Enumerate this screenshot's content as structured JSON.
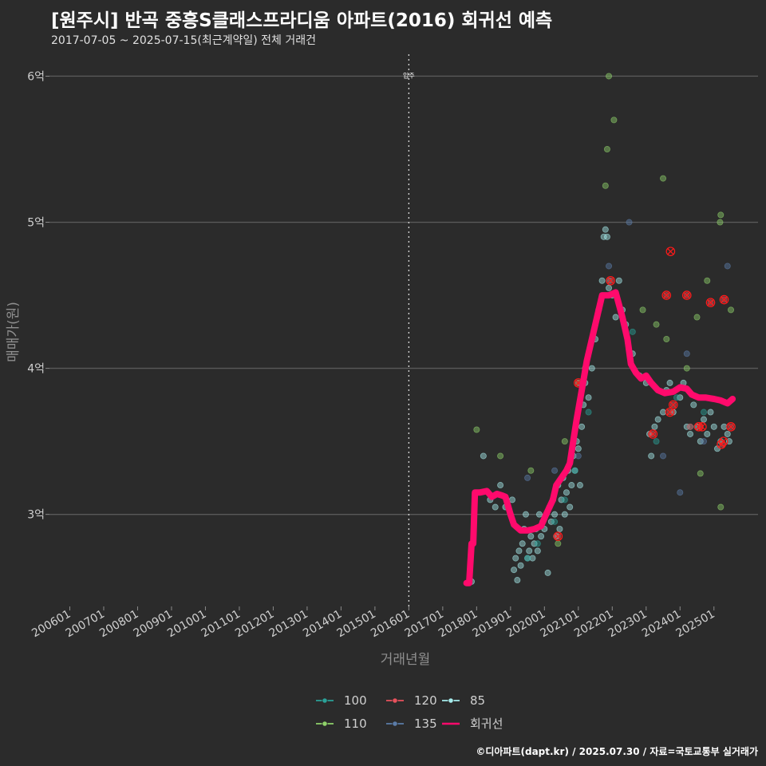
{
  "header": {
    "title": "[원주시] 반곡 중흥S클래스프라디움 아파트(2016) 회귀선 예측",
    "subtitle": "2017-07-05 ~ 2025-07-15(최근계약일) 전체 거래건"
  },
  "credit": "©디아파트(dapt.kr) / 2025.07.30 / 자료=국토교통부 실거래가",
  "chart_data": {
    "type": "scatter",
    "xlabel": "거래년월",
    "ylabel": "매매가(원)",
    "x_ticks": [
      "200601",
      "200701",
      "200801",
      "200901",
      "201001",
      "201101",
      "201201",
      "201301",
      "201401",
      "201501",
      "201601",
      "201701",
      "201801",
      "201901",
      "202001",
      "202101",
      "202201",
      "202301",
      "202401",
      "202501"
    ],
    "xlim": [
      2005.4,
      2026.3
    ],
    "y_ticks": [
      {
        "value": 3,
        "label": "3억"
      },
      {
        "value": 4,
        "label": "4억"
      },
      {
        "value": 5,
        "label": "5억"
      },
      {
        "value": 6,
        "label": "6억"
      }
    ],
    "ylim": [
      2.37,
      6.15
    ],
    "y_unit": "억",
    "annotation": {
      "x": 2016.0,
      "label": "입주"
    },
    "grid": true,
    "legend_position": "bottom",
    "colors": {
      "100": "#2aa198",
      "110": "#8fd16a",
      "120": "#e8515c",
      "135": "#5b7ca8",
      "85": "#a6ecec",
      "회귀선": "#ff0a6c",
      "outlier": "#ff1a1a"
    },
    "legend": [
      {
        "key": "100",
        "label": "100"
      },
      {
        "key": "110",
        "label": "110"
      },
      {
        "key": "120",
        "label": "120"
      },
      {
        "key": "135",
        "label": "135"
      },
      {
        "key": "85",
        "label": "85"
      },
      {
        "key": "회귀선",
        "label": "회귀선"
      }
    ],
    "series": [
      {
        "name": "85",
        "points": [
          [
            2017.85,
            2.54
          ],
          [
            2018.2,
            3.4
          ],
          [
            2018.4,
            3.1
          ],
          [
            2018.55,
            3.05
          ],
          [
            2018.7,
            3.2
          ],
          [
            2018.85,
            3.05
          ],
          [
            2019.0,
            3.0
          ],
          [
            2019.05,
            3.1
          ],
          [
            2019.1,
            2.62
          ],
          [
            2019.15,
            2.7
          ],
          [
            2019.2,
            2.55
          ],
          [
            2019.25,
            2.75
          ],
          [
            2019.3,
            2.65
          ],
          [
            2019.35,
            2.8
          ],
          [
            2019.4,
            2.9
          ],
          [
            2019.45,
            3.0
          ],
          [
            2019.5,
            2.7
          ],
          [
            2019.55,
            2.75
          ],
          [
            2019.6,
            2.85
          ],
          [
            2019.65,
            2.7
          ],
          [
            2019.7,
            2.8
          ],
          [
            2019.75,
            2.9
          ],
          [
            2019.8,
            2.75
          ],
          [
            2019.85,
            3.0
          ],
          [
            2019.9,
            2.85
          ],
          [
            2019.95,
            2.95
          ],
          [
            2020.0,
            2.9
          ],
          [
            2020.05,
            3.0
          ],
          [
            2020.1,
            2.6
          ],
          [
            2020.15,
            3.05
          ],
          [
            2020.2,
            2.95
          ],
          [
            2020.25,
            3.1
          ],
          [
            2020.3,
            3.0
          ],
          [
            2020.35,
            2.85
          ],
          [
            2020.4,
            3.2
          ],
          [
            2020.45,
            2.9
          ],
          [
            2020.5,
            3.1
          ],
          [
            2020.55,
            3.25
          ],
          [
            2020.6,
            3.0
          ],
          [
            2020.65,
            3.15
          ],
          [
            2020.7,
            3.3
          ],
          [
            2020.75,
            3.05
          ],
          [
            2020.8,
            3.2
          ],
          [
            2020.85,
            3.4
          ],
          [
            2020.9,
            3.3
          ],
          [
            2020.95,
            3.5
          ],
          [
            2021.0,
            3.45
          ],
          [
            2021.05,
            3.2
          ],
          [
            2021.1,
            3.6
          ],
          [
            2021.15,
            3.75
          ],
          [
            2021.2,
            3.9
          ],
          [
            2021.3,
            3.8
          ],
          [
            2021.4,
            4.0
          ],
          [
            2021.5,
            4.2
          ],
          [
            2021.6,
            4.4
          ],
          [
            2021.7,
            4.6
          ],
          [
            2021.75,
            4.9
          ],
          [
            2021.8,
            4.95
          ],
          [
            2021.85,
            4.9
          ],
          [
            2021.9,
            4.55
          ],
          [
            2022.0,
            4.5
          ],
          [
            2022.1,
            4.35
          ],
          [
            2022.2,
            4.6
          ],
          [
            2022.3,
            4.4
          ],
          [
            2022.4,
            4.3
          ],
          [
            2022.6,
            4.1
          ],
          [
            2022.8,
            3.95
          ],
          [
            2023.0,
            3.9
          ],
          [
            2023.1,
            3.55
          ],
          [
            2023.15,
            3.4
          ],
          [
            2023.25,
            3.6
          ],
          [
            2023.35,
            3.65
          ],
          [
            2023.5,
            3.7
          ],
          [
            2023.6,
            3.85
          ],
          [
            2023.7,
            3.9
          ],
          [
            2023.8,
            3.7
          ],
          [
            2024.0,
            3.8
          ],
          [
            2024.1,
            3.9
          ],
          [
            2024.2,
            3.6
          ],
          [
            2024.3,
            3.55
          ],
          [
            2024.4,
            3.75
          ],
          [
            2024.5,
            3.6
          ],
          [
            2024.6,
            3.5
          ],
          [
            2024.7,
            3.65
          ],
          [
            2024.8,
            3.55
          ],
          [
            2024.9,
            3.7
          ],
          [
            2025.0,
            3.6
          ],
          [
            2025.1,
            3.45
          ],
          [
            2025.2,
            3.5
          ],
          [
            2025.3,
            3.6
          ],
          [
            2025.4,
            3.55
          ],
          [
            2025.45,
            3.5
          ]
        ]
      },
      {
        "name": "100",
        "points": [
          [
            2019.5,
            2.7
          ],
          [
            2019.8,
            2.8
          ],
          [
            2020.3,
            2.95
          ],
          [
            2020.6,
            3.1
          ],
          [
            2020.9,
            3.3
          ],
          [
            2021.3,
            3.7
          ],
          [
            2021.9,
            4.6
          ],
          [
            2022.6,
            4.25
          ],
          [
            2023.3,
            3.5
          ],
          [
            2023.9,
            3.8
          ],
          [
            2024.3,
            3.6
          ],
          [
            2024.7,
            3.7
          ],
          [
            2025.2,
            3.5
          ]
        ]
      },
      {
        "name": "110",
        "points": [
          [
            2018.0,
            3.58
          ],
          [
            2018.7,
            3.4
          ],
          [
            2019.6,
            3.3
          ],
          [
            2020.4,
            2.8
          ],
          [
            2020.6,
            3.5
          ],
          [
            2021.0,
            3.9
          ],
          [
            2021.2,
            4.0
          ],
          [
            2021.9,
            6.0
          ],
          [
            2021.85,
            5.5
          ],
          [
            2022.05,
            5.7
          ],
          [
            2021.8,
            5.25
          ],
          [
            2022.9,
            4.4
          ],
          [
            2023.3,
            4.3
          ],
          [
            2023.5,
            5.3
          ],
          [
            2023.6,
            4.2
          ],
          [
            2024.2,
            4.0
          ],
          [
            2024.5,
            4.35
          ],
          [
            2024.6,
            3.28
          ],
          [
            2024.8,
            4.6
          ],
          [
            2025.2,
            5.05
          ],
          [
            2025.18,
            5.0
          ],
          [
            2025.5,
            4.4
          ],
          [
            2025.2,
            3.05
          ]
        ]
      },
      {
        "name": "120",
        "points": [
          [
            2020.4,
            2.85
          ],
          [
            2021.0,
            3.9
          ],
          [
            2021.95,
            4.6
          ],
          [
            2023.2,
            3.55
          ],
          [
            2023.6,
            4.5
          ],
          [
            2023.7,
            3.7
          ],
          [
            2023.8,
            3.75
          ],
          [
            2024.2,
            4.5
          ],
          [
            2024.3,
            3.6
          ],
          [
            2024.6,
            3.6
          ],
          [
            2024.9,
            4.45
          ],
          [
            2025.3,
            4.47
          ],
          [
            2025.5,
            3.6
          ],
          [
            2025.25,
            3.48
          ]
        ]
      },
      {
        "name": "135",
        "points": [
          [
            2019.5,
            3.25
          ],
          [
            2020.3,
            3.3
          ],
          [
            2021.0,
            3.4
          ],
          [
            2021.9,
            4.7
          ],
          [
            2022.5,
            5.0
          ],
          [
            2023.5,
            3.4
          ],
          [
            2024.0,
            3.15
          ],
          [
            2024.2,
            4.1
          ],
          [
            2024.7,
            3.5
          ],
          [
            2025.4,
            4.7
          ]
        ]
      }
    ],
    "outliers": [
      [
        2020.4,
        2.85
      ],
      [
        2021.0,
        3.9
      ],
      [
        2021.95,
        4.6
      ],
      [
        2023.2,
        3.55
      ],
      [
        2023.6,
        4.5
      ],
      [
        2023.7,
        3.7
      ],
      [
        2023.8,
        3.75
      ],
      [
        2023.72,
        4.8
      ],
      [
        2024.2,
        4.5
      ],
      [
        2024.55,
        3.6
      ],
      [
        2024.65,
        3.6
      ],
      [
        2024.9,
        4.45
      ],
      [
        2025.3,
        4.47
      ],
      [
        2025.5,
        3.6
      ],
      [
        2025.22,
        3.48
      ],
      [
        2025.28,
        3.5
      ]
    ],
    "regression": [
      [
        2017.7,
        2.53
      ],
      [
        2017.78,
        2.53
      ],
      [
        2017.85,
        2.8
      ],
      [
        2017.9,
        2.8
      ],
      [
        2017.95,
        3.15
      ],
      [
        2018.1,
        3.15
      ],
      [
        2018.3,
        3.16
      ],
      [
        2018.45,
        3.12
      ],
      [
        2018.6,
        3.14
      ],
      [
        2018.75,
        3.13
      ],
      [
        2018.85,
        3.12
      ],
      [
        2019.0,
        3.0
      ],
      [
        2019.1,
        2.93
      ],
      [
        2019.3,
        2.89
      ],
      [
        2019.5,
        2.89
      ],
      [
        2019.7,
        2.9
      ],
      [
        2019.9,
        2.92
      ],
      [
        2020.05,
        3.0
      ],
      [
        2020.25,
        3.1
      ],
      [
        2020.35,
        3.2
      ],
      [
        2020.5,
        3.25
      ],
      [
        2020.65,
        3.3
      ],
      [
        2020.75,
        3.35
      ],
      [
        2020.85,
        3.5
      ],
      [
        2020.95,
        3.65
      ],
      [
        2021.1,
        3.85
      ],
      [
        2021.25,
        4.05
      ],
      [
        2021.4,
        4.2
      ],
      [
        2021.55,
        4.35
      ],
      [
        2021.7,
        4.5
      ],
      [
        2021.9,
        4.5
      ],
      [
        2022.1,
        4.52
      ],
      [
        2022.3,
        4.35
      ],
      [
        2022.45,
        4.2
      ],
      [
        2022.55,
        4.03
      ],
      [
        2022.7,
        3.97
      ],
      [
        2022.85,
        3.93
      ],
      [
        2023.0,
        3.95
      ],
      [
        2023.15,
        3.9
      ],
      [
        2023.35,
        3.85
      ],
      [
        2023.55,
        3.83
      ],
      [
        2023.8,
        3.84
      ],
      [
        2024.0,
        3.87
      ],
      [
        2024.2,
        3.86
      ],
      [
        2024.35,
        3.82
      ],
      [
        2024.55,
        3.8
      ],
      [
        2024.75,
        3.8
      ],
      [
        2025.0,
        3.79
      ],
      [
        2025.2,
        3.78
      ],
      [
        2025.4,
        3.76
      ],
      [
        2025.55,
        3.79
      ]
    ]
  }
}
